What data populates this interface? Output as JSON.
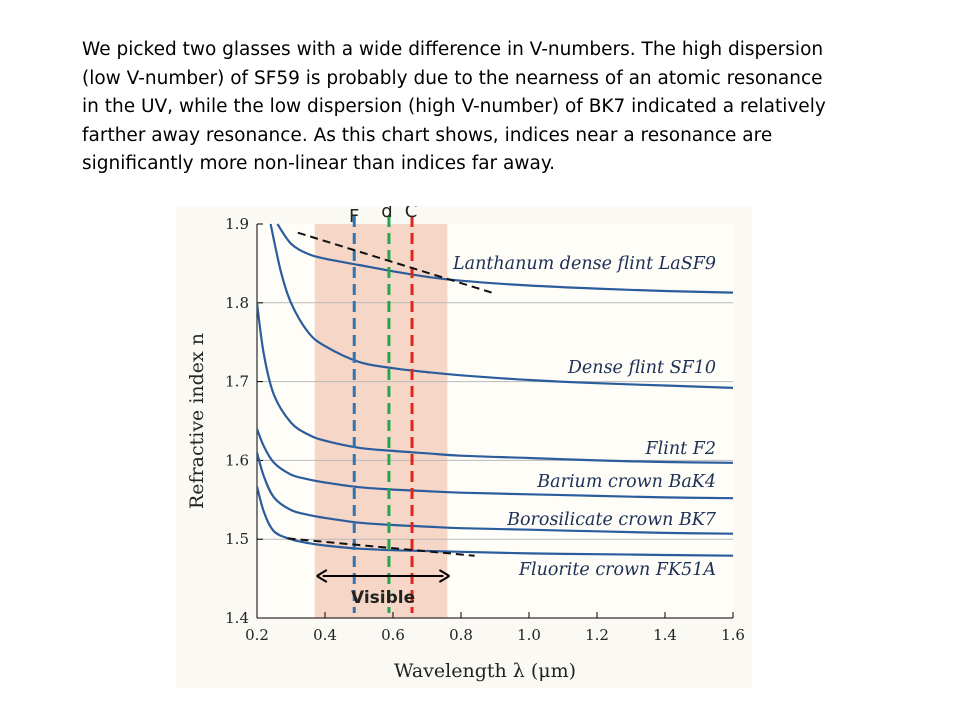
{
  "paragraph": {
    "lines": [
      "We picked two glasses with a wide difference in V-numbers.  The high dispersion",
      "(low V-number) of SF59 is probably due to the nearness of an atomic resonance",
      "in the UV, while the low dispersion (high V-number) of BK7 indicated a relatively",
      "farther away resonance.  As this chart shows, indices near a resonance are",
      "significantly more non-linear than indices far away."
    ]
  },
  "chart_data": {
    "type": "line",
    "xlabel": "Wavelength λ (μm)",
    "ylabel": "Refractive index n",
    "xlim": [
      0.2,
      1.6
    ],
    "ylim": [
      1.4,
      1.9
    ],
    "xticks": [
      "0.2",
      "0.4",
      "0.6",
      "0.8",
      "1.0",
      "1.2",
      "1.4",
      "1.6"
    ],
    "yticks": [
      "1.4",
      "1.5",
      "1.6",
      "1.7",
      "1.8",
      "1.9"
    ],
    "grid": "horizontal",
    "visible_band": {
      "label": "Visible",
      "range": [
        0.37,
        0.76
      ],
      "color": "#f6d6c6"
    },
    "wavelength_lines": [
      {
        "label": "F",
        "x": 0.486,
        "color": "#2e75b6"
      },
      {
        "label": "d",
        "x": 0.588,
        "color": "#22a84a"
      },
      {
        "label": "C",
        "x": 0.656,
        "color": "#e0261c"
      }
    ],
    "series_color": "#2b5c9c",
    "series": [
      {
        "name": "Lanthanum dense flint LaSF9",
        "x": [
          0.26,
          0.3,
          0.35,
          0.4,
          0.5,
          0.6,
          0.7,
          0.8,
          1.0,
          1.2,
          1.4,
          1.6
        ],
        "values": [
          1.9,
          1.875,
          1.862,
          1.856,
          1.848,
          1.84,
          1.833,
          1.828,
          1.822,
          1.818,
          1.815,
          1.813
        ]
      },
      {
        "name": "Dense flint SF10",
        "x": [
          0.24,
          0.27,
          0.3,
          0.35,
          0.4,
          0.5,
          0.6,
          0.7,
          0.8,
          1.0,
          1.2,
          1.4,
          1.6
        ],
        "values": [
          1.9,
          1.84,
          1.8,
          1.763,
          1.745,
          1.725,
          1.717,
          1.712,
          1.708,
          1.702,
          1.698,
          1.695,
          1.692
        ]
      },
      {
        "name": "Flint F2",
        "x": [
          0.2,
          0.22,
          0.25,
          0.3,
          0.35,
          0.4,
          0.5,
          0.6,
          0.7,
          0.8,
          1.0,
          1.2,
          1.4,
          1.6
        ],
        "values": [
          1.8,
          1.735,
          1.683,
          1.648,
          1.633,
          1.625,
          1.616,
          1.612,
          1.609,
          1.606,
          1.603,
          1.6,
          1.598,
          1.597
        ]
      },
      {
        "name": "Barium crown BaK4",
        "x": [
          0.2,
          0.22,
          0.25,
          0.3,
          0.35,
          0.4,
          0.5,
          0.6,
          0.7,
          0.8,
          1.0,
          1.2,
          1.4,
          1.6
        ],
        "values": [
          1.64,
          1.618,
          1.597,
          1.582,
          1.576,
          1.572,
          1.566,
          1.563,
          1.561,
          1.559,
          1.557,
          1.555,
          1.553,
          1.552
        ]
      },
      {
        "name": "Borosilicate crown BK7",
        "x": [
          0.2,
          0.22,
          0.25,
          0.3,
          0.35,
          0.4,
          0.5,
          0.6,
          0.7,
          0.8,
          1.0,
          1.2,
          1.4,
          1.6
        ],
        "values": [
          1.61,
          1.58,
          1.553,
          1.537,
          1.531,
          1.527,
          1.521,
          1.518,
          1.516,
          1.514,
          1.512,
          1.51,
          1.508,
          1.507
        ]
      },
      {
        "name": "Fluorite crown FK51A",
        "x": [
          0.2,
          0.22,
          0.25,
          0.3,
          0.35,
          0.4,
          0.5,
          0.6,
          0.7,
          0.8,
          1.0,
          1.2,
          1.4,
          1.6
        ],
        "values": [
          1.567,
          1.535,
          1.51,
          1.5,
          1.495,
          1.492,
          1.488,
          1.486,
          1.485,
          1.484,
          1.482,
          1.481,
          1.48,
          1.479
        ]
      }
    ],
    "tangent_lines": [
      {
        "from": [
          0.32,
          1.889
        ],
        "to": [
          0.89,
          1.813
        ]
      },
      {
        "from": [
          0.29,
          1.501
        ],
        "to": [
          0.84,
          1.479
        ]
      }
    ]
  }
}
